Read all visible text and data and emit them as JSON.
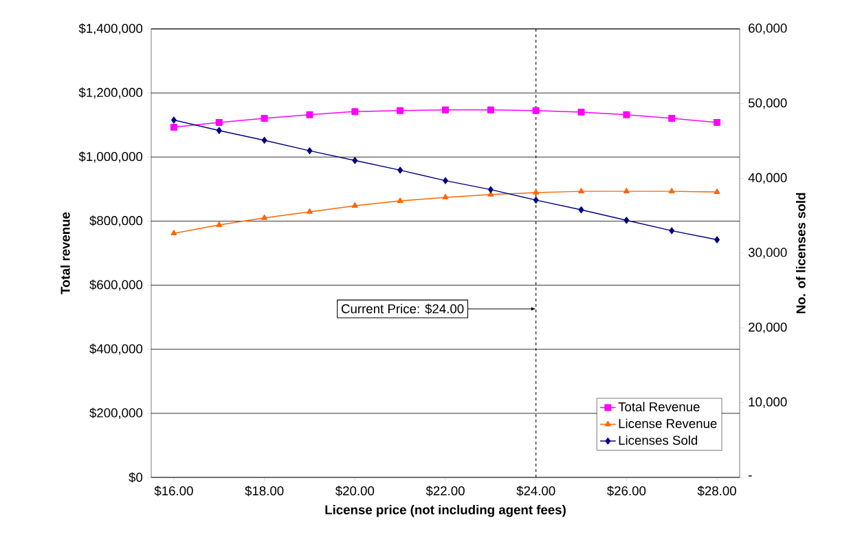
{
  "chart_data": {
    "type": "line",
    "xlabel": "License price (not including agent fees)",
    "ylabel": "Total revenue",
    "y2label": "No. of licenses sold",
    "x": [
      16,
      17,
      18,
      19,
      20,
      21,
      22,
      23,
      24,
      25,
      26,
      27,
      28
    ],
    "series": [
      {
        "name": "Total Revenue",
        "color": "#ff00ff",
        "marker": "square",
        "values": [
          1093000,
          1108000,
          1121000,
          1132000,
          1142000,
          1145000,
          1147000,
          1147000,
          1145000,
          1140000,
          1132000,
          1121000,
          1108000
        ]
      },
      {
        "name": "License Revenue",
        "color": "#ff6600",
        "marker": "triangle",
        "values": [
          762000,
          788000,
          810000,
          829000,
          848000,
          863000,
          874000,
          883000,
          889000,
          893000,
          893000,
          893000,
          891000
        ]
      },
      {
        "name": "Licenses Sold",
        "color": "#000080",
        "marker": "diamond",
        "axis": "y2",
        "values": [
          47800,
          46400,
          45100,
          43700,
          42400,
          41100,
          39700,
          38500,
          37100,
          35800,
          34400,
          33000,
          31800
        ]
      }
    ],
    "xlim": [
      15.5,
      28.5
    ],
    "xticks": [
      {
        "value": 16,
        "label": "$16.00"
      },
      {
        "value": 18,
        "label": "$18.00"
      },
      {
        "value": 20,
        "label": "$20.00"
      },
      {
        "value": 22,
        "label": "$22.00"
      },
      {
        "value": 24,
        "label": "$24.00"
      },
      {
        "value": 26,
        "label": "$26.00"
      },
      {
        "value": 28,
        "label": "$28.00"
      }
    ],
    "ylim": [
      0,
      1400000
    ],
    "yticks": [
      {
        "value": 0,
        "label": "$0"
      },
      {
        "value": 200000,
        "label": "$200,000"
      },
      {
        "value": 400000,
        "label": "$400,000"
      },
      {
        "value": 600000,
        "label": "$600,000"
      },
      {
        "value": 800000,
        "label": "$800,000"
      },
      {
        "value": 1000000,
        "label": "$1,000,000"
      },
      {
        "value": 1200000,
        "label": "$1,200,000"
      },
      {
        "value": 1400000,
        "label": "$1,400,000"
      }
    ],
    "y2lim": [
      0,
      60000
    ],
    "y2ticks": [
      {
        "value": 0,
        "label": "-"
      },
      {
        "value": 10000,
        "label": "10,000"
      },
      {
        "value": 20000,
        "label": "20,000"
      },
      {
        "value": 30000,
        "label": "30,000"
      },
      {
        "value": 40000,
        "label": "40,000"
      },
      {
        "value": 50000,
        "label": "50,000"
      },
      {
        "value": 60000,
        "label": "60,000"
      }
    ],
    "ref_lines": [
      {
        "axis": "x",
        "value": 24,
        "line_style": "dashed",
        "color": "#000000"
      }
    ],
    "annotations": [
      {
        "text": "Current Price: $24.00",
        "x": 24,
        "y": 526000
      }
    ],
    "grid": "y",
    "legend": "bottom right"
  }
}
